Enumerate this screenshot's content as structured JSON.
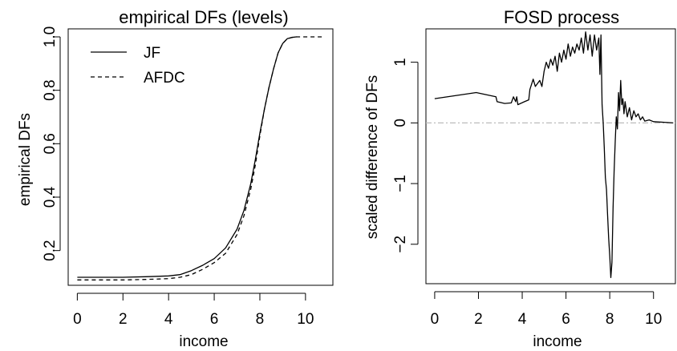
{
  "chart_data": [
    {
      "type": "line",
      "title": "empirical DFs (levels)",
      "xlabel": "income",
      "ylabel": "empirical DFs",
      "xlim": [
        -0.4,
        11.2
      ],
      "ylim": [
        0.07,
        1.03
      ],
      "xticks": [
        0,
        2,
        4,
        6,
        8,
        10
      ],
      "yticks": [
        0.2,
        0.4,
        0.6,
        0.8,
        1.0
      ],
      "xtick_labels": [
        "0",
        "2",
        "4",
        "6",
        "8",
        "10"
      ],
      "ytick_labels": [
        "0.2",
        "0.4",
        "0.6",
        "0.8",
        "1.0"
      ],
      "legend_position": "top-left",
      "grid": false,
      "series": [
        {
          "name": "JF",
          "linestyle": "solid",
          "x": [
            0,
            1,
            2,
            3,
            4,
            4.5,
            5,
            5.5,
            6,
            6.5,
            7,
            7.3,
            7.6,
            7.8,
            8,
            8.2,
            8.4,
            8.6,
            8.8,
            9,
            9.2,
            9.4,
            9.6
          ],
          "y": [
            0.1,
            0.1,
            0.1,
            0.102,
            0.105,
            0.11,
            0.125,
            0.145,
            0.17,
            0.21,
            0.28,
            0.35,
            0.45,
            0.54,
            0.64,
            0.73,
            0.81,
            0.88,
            0.94,
            0.975,
            0.993,
            0.998,
            1.0
          ]
        },
        {
          "name": "AFDC",
          "linestyle": "dashed",
          "x": [
            0,
            1,
            2,
            3,
            4,
            4.5,
            5,
            5.5,
            6,
            6.5,
            7,
            7.3,
            7.6,
            7.8,
            8,
            8.2,
            8.4,
            8.6,
            8.8,
            9,
            9.2,
            9.4,
            9.6,
            10,
            10.5,
            10.8
          ],
          "y": [
            0.09,
            0.09,
            0.09,
            0.092,
            0.095,
            0.1,
            0.11,
            0.13,
            0.155,
            0.19,
            0.26,
            0.33,
            0.43,
            0.52,
            0.63,
            0.73,
            0.81,
            0.88,
            0.94,
            0.975,
            0.993,
            0.998,
            1.0,
            1.0,
            1.0,
            1.0
          ]
        }
      ]
    },
    {
      "type": "line",
      "title": "FOSD process",
      "xlabel": "income",
      "ylabel": "scaled difference of DFs",
      "xlim": [
        -0.4,
        11.0
      ],
      "ylim": [
        -2.65,
        1.55
      ],
      "xticks": [
        0,
        2,
        4,
        6,
        8,
        10
      ],
      "yticks": [
        -2,
        -1,
        0,
        1
      ],
      "xtick_labels": [
        "0",
        "2",
        "4",
        "6",
        "8",
        "10"
      ],
      "ytick_labels": [
        "−2",
        "−1",
        "0",
        "1"
      ],
      "reference_line": {
        "y": 0,
        "color": "#bbbbbb",
        "linestyle": "dashdot"
      },
      "grid": false,
      "series": [
        {
          "x": [
            0,
            1.9,
            2.8,
            2.85,
            3.2,
            3.5,
            3.6,
            3.7,
            3.75,
            3.8,
            4.1,
            4.3,
            4.35,
            4.5,
            4.6,
            4.8,
            4.9,
            5.0,
            5.1,
            5.2,
            5.3,
            5.4,
            5.5,
            5.6,
            5.7,
            5.8,
            5.9,
            6.0,
            6.1,
            6.2,
            6.3,
            6.4,
            6.5,
            6.6,
            6.7,
            6.8,
            6.9,
            7.0,
            7.1,
            7.2,
            7.3,
            7.4,
            7.5,
            7.55,
            7.6,
            7.65,
            7.7,
            7.75,
            7.8,
            7.85,
            7.9,
            7.95,
            8.0,
            8.05,
            8.1,
            8.15,
            8.2,
            8.25,
            8.3,
            8.35,
            8.4,
            8.45,
            8.5,
            8.55,
            8.6,
            8.65,
            8.7,
            8.8,
            8.9,
            9.0,
            9.1,
            9.2,
            9.3,
            9.4,
            9.5,
            9.6,
            9.8,
            10.0,
            10.5,
            10.9
          ],
          "y": [
            0.4,
            0.5,
            0.43,
            0.35,
            0.32,
            0.33,
            0.43,
            0.35,
            0.43,
            0.3,
            0.35,
            0.38,
            0.55,
            0.72,
            0.6,
            0.7,
            0.6,
            0.85,
            1.0,
            0.9,
            1.05,
            0.95,
            1.1,
            0.85,
            1.15,
            1.0,
            1.2,
            1.05,
            1.3,
            1.1,
            1.25,
            1.15,
            1.3,
            1.2,
            1.4,
            1.15,
            1.5,
            1.2,
            1.45,
            1.1,
            1.45,
            1.2,
            1.4,
            0.8,
            1.45,
            0.3,
            0.0,
            -0.4,
            -0.9,
            -1.1,
            -1.5,
            -1.9,
            -2.2,
            -2.55,
            -2.3,
            -1.4,
            -0.8,
            -0.3,
            0.1,
            -0.1,
            0.5,
            0.2,
            0.7,
            0.3,
            0.4,
            0.15,
            0.35,
            0.1,
            0.25,
            0.05,
            0.2,
            0.1,
            0.15,
            0.05,
            0.1,
            0.03,
            0.05,
            0.02,
            0.01,
            0.0
          ]
        }
      ]
    }
  ]
}
